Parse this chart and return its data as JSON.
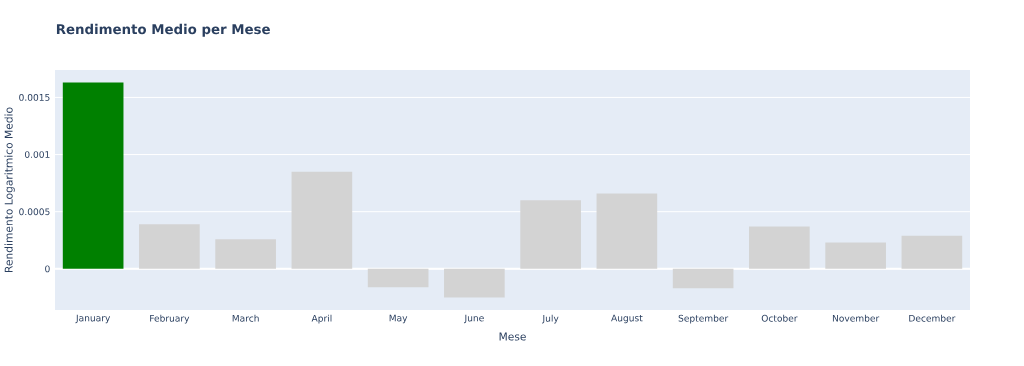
{
  "chart_data": {
    "type": "bar",
    "title": "Rendimento Medio per Mese",
    "xlabel": "Mese",
    "ylabel": "Rendimento Logaritmico Medio",
    "categories": [
      "January",
      "February",
      "March",
      "April",
      "May",
      "June",
      "July",
      "August",
      "September",
      "October",
      "November",
      "December"
    ],
    "values": [
      0.00163,
      0.00039,
      0.00026,
      0.00085,
      -0.00016,
      -0.00025,
      0.0006,
      0.00066,
      -0.00017,
      0.00037,
      0.00023,
      0.00029
    ],
    "colors": [
      "#008000",
      "#d3d3d3",
      "#d3d3d3",
      "#d3d3d3",
      "#d3d3d3",
      "#d3d3d3",
      "#d3d3d3",
      "#d3d3d3",
      "#d3d3d3",
      "#d3d3d3",
      "#d3d3d3",
      "#d3d3d3"
    ],
    "ylim": [
      -0.00036,
      0.00174
    ],
    "yticks": [
      0,
      0.0005,
      0.001,
      0.0015
    ],
    "grid": "y"
  }
}
